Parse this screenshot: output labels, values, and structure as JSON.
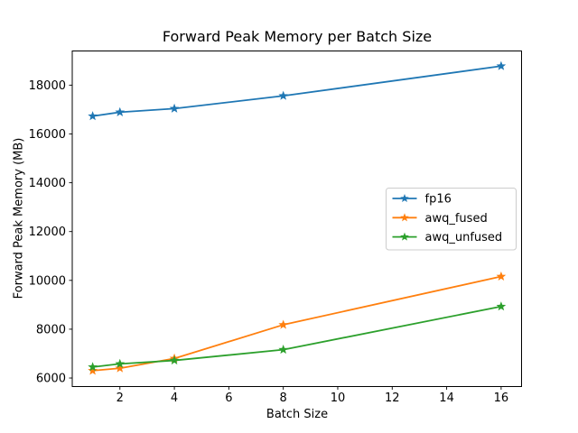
{
  "chart_data": {
    "type": "line",
    "title": "Forward Peak Memory per Batch Size",
    "xlabel": "Batch Size",
    "ylabel": "Forward Peak Memory (MB)",
    "x": [
      1,
      2,
      4,
      8,
      16
    ],
    "series": [
      {
        "name": "fp16",
        "color": "#1f77b4",
        "values": [
          16730,
          16890,
          17040,
          17560,
          18780
        ]
      },
      {
        "name": "awq_fused",
        "color": "#ff7f0e",
        "values": [
          6300,
          6400,
          6800,
          8180,
          10160
        ]
      },
      {
        "name": "awq_unfused",
        "color": "#2ca02c",
        "values": [
          6450,
          6580,
          6720,
          7160,
          8930
        ]
      }
    ],
    "marker": "star",
    "xlim": [
      0.25,
      16.75
    ],
    "ylim": [
      5650,
      19400
    ],
    "xticks": [
      2,
      4,
      6,
      8,
      10,
      12,
      14,
      16
    ],
    "yticks": [
      6000,
      8000,
      10000,
      12000,
      14000,
      16000,
      18000
    ],
    "grid": false,
    "legend": {
      "position": "center-right"
    },
    "colors": {
      "axis": "#000000",
      "legend_border": "#cccccc",
      "background": "#ffffff"
    }
  }
}
